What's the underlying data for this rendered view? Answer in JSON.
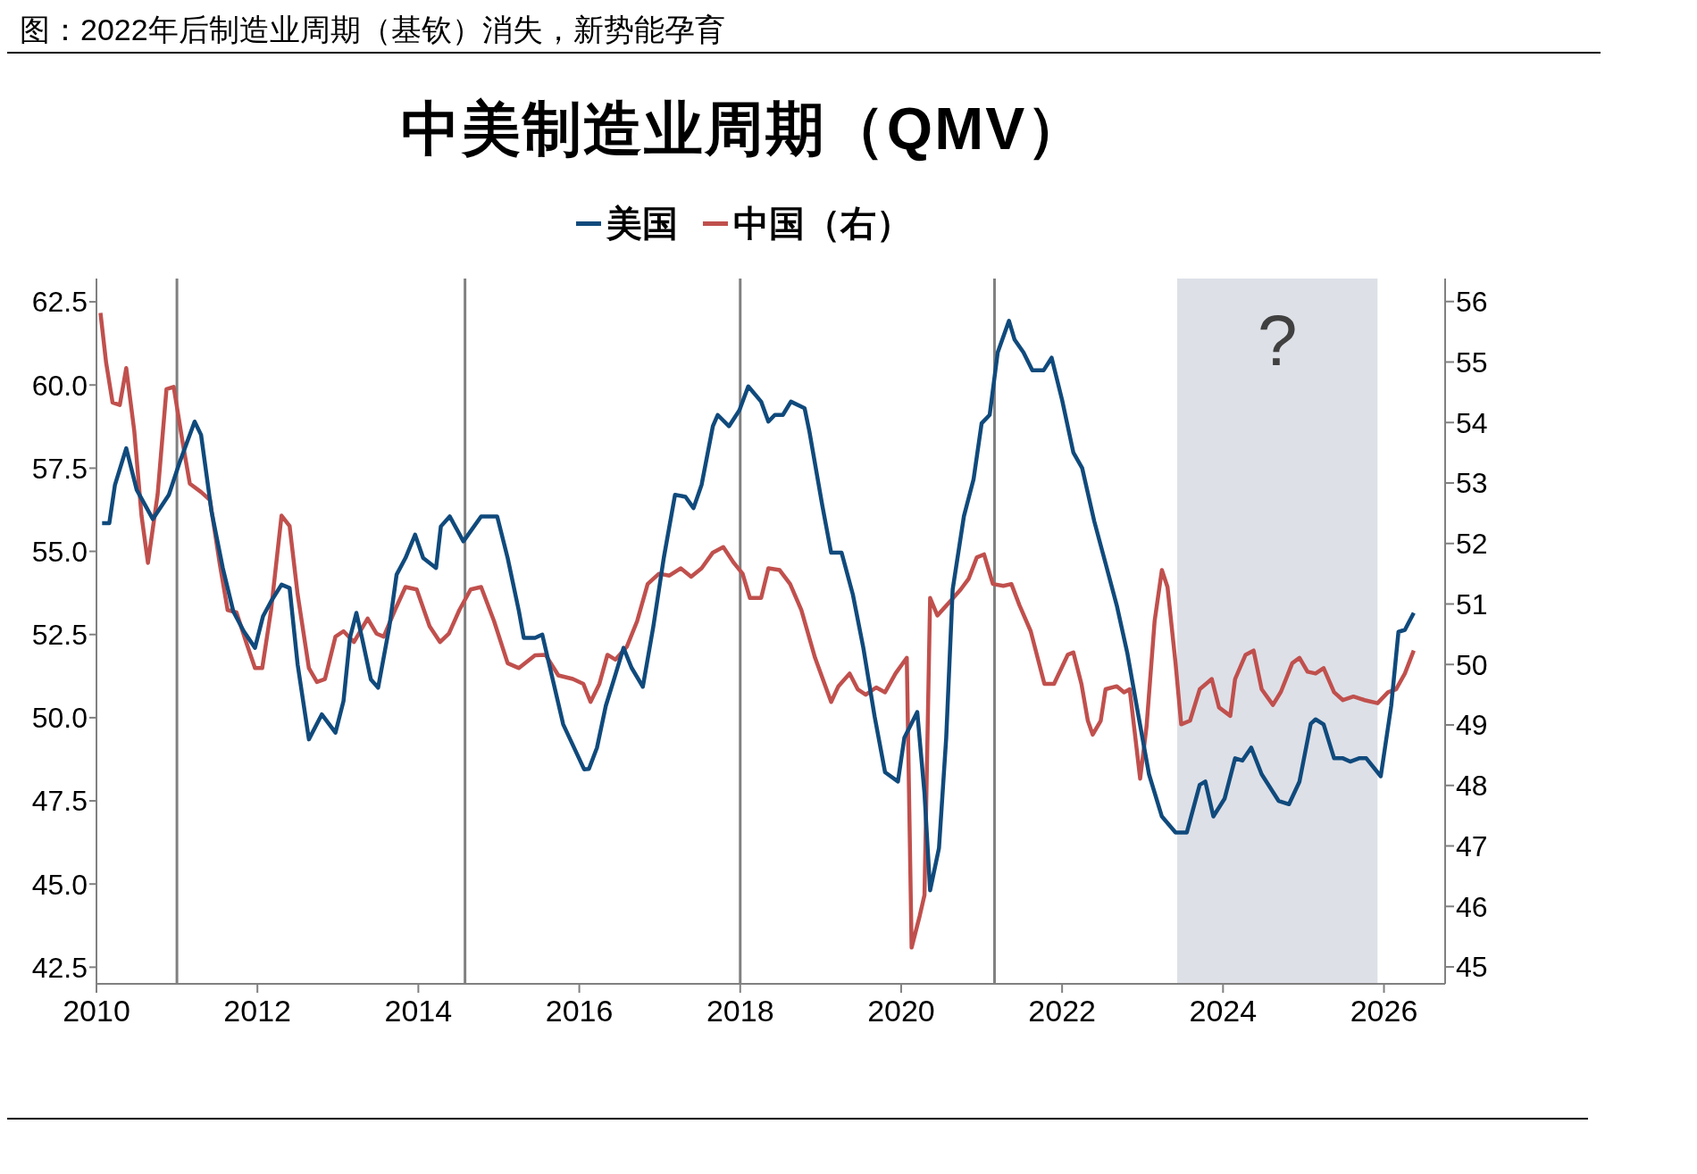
{
  "chart_data": {
    "type": "line",
    "title": "图：2022年后制造业周期（基钦）消失，新势能孕育",
    "subtitle": "中美制造业周期（QMV）",
    "xlim": [
      2010,
      2026.76
    ],
    "xticks": [
      2010,
      2012,
      2014,
      2016,
      2018,
      2020,
      2022,
      2024,
      2026
    ],
    "ylim": [
      42,
      63.2
    ],
    "yticks": [
      {
        "value": 42.5,
        "label": "42.5"
      },
      {
        "value": 45,
        "label": "45.0"
      },
      47.5,
      {
        "value": 50,
        "label": "50.0"
      },
      52.5,
      {
        "value": 55,
        "label": "55.0"
      },
      57.5,
      {
        "value": 60,
        "label": "60.0"
      },
      62.5
    ],
    "y2lim": [
      44.72,
      56.38
    ],
    "y2ticks": [
      45,
      46,
      47,
      48,
      49,
      50,
      51,
      52,
      53,
      54,
      55,
      56
    ],
    "grid": false,
    "legend": "top",
    "ref_lines": [
      {
        "axis": "x",
        "value": 2011.0,
        "color": "#808080"
      },
      {
        "axis": "x",
        "value": 2014.58,
        "color": "#808080"
      },
      {
        "axis": "x",
        "value": 2018.0,
        "color": "#808080"
      },
      {
        "axis": "x",
        "value": 2021.16,
        "color": "#808080"
      }
    ],
    "bands": [
      {
        "axis": "x",
        "from": 2023.43,
        "to": 2025.92,
        "label": "?",
        "color": "#dde0e7"
      }
    ],
    "series": [
      {
        "name": "美国",
        "color": "#104a7c",
        "x": [
          2010.07,
          2010.16,
          2010.23,
          2010.37,
          2010.5,
          2010.7,
          2010.9,
          2011.03,
          2011.22,
          2011.3,
          2011.43,
          2011.57,
          2011.7,
          2011.83,
          2011.97,
          2012.07,
          2012.17,
          2012.3,
          2012.4,
          2012.5,
          2012.64,
          2012.8,
          2012.97,
          2013.07,
          2013.15,
          2013.23,
          2013.3,
          2013.41,
          2013.5,
          2013.64,
          2013.73,
          2013.84,
          2013.96,
          2014.06,
          2014.22,
          2014.28,
          2014.39,
          2014.56,
          2014.78,
          2014.98,
          2015.11,
          2015.25,
          2015.31,
          2015.45,
          2015.54,
          2015.8,
          2016.06,
          2016.12,
          2016.22,
          2016.33,
          2016.45,
          2016.55,
          2016.65,
          2016.79,
          2016.92,
          2017.05,
          2017.19,
          2017.32,
          2017.42,
          2017.52,
          2017.66,
          2017.72,
          2017.86,
          2017.99,
          2018.1,
          2018.26,
          2018.35,
          2018.43,
          2018.53,
          2018.63,
          2018.8,
          2018.86,
          2019.02,
          2019.13,
          2019.26,
          2019.4,
          2019.53,
          2019.67,
          2019.8,
          2019.96,
          2020.04,
          2020.2,
          2020.29,
          2020.36,
          2020.47,
          2020.56,
          2020.64,
          2020.78,
          2020.9,
          2021.0,
          2021.1,
          2021.2,
          2021.34,
          2021.41,
          2021.52,
          2021.63,
          2021.77,
          2021.87,
          2022.0,
          2022.14,
          2022.25,
          2022.4,
          2022.54,
          2022.68,
          2022.81,
          2022.95,
          2023.08,
          2023.24,
          2023.41,
          2023.55,
          2023.71,
          2023.78,
          2023.88,
          2024.02,
          2024.15,
          2024.24,
          2024.35,
          2024.48,
          2024.69,
          2024.82,
          2024.95,
          2025.09,
          2025.15,
          2025.25,
          2025.38,
          2025.49,
          2025.58,
          2025.69,
          2025.78,
          2025.96,
          2026.09,
          2026.18,
          2026.26,
          2026.37
        ],
        "values": [
          55.85,
          55.85,
          57.0,
          58.1,
          56.85,
          55.97,
          56.7,
          57.65,
          58.9,
          58.5,
          56.2,
          54.5,
          53.2,
          52.6,
          52.1,
          53.05,
          53.5,
          54.0,
          53.9,
          51.6,
          49.35,
          50.1,
          49.55,
          50.5,
          52.4,
          53.15,
          52.4,
          51.15,
          50.9,
          52.74,
          54.3,
          54.8,
          55.5,
          54.8,
          54.5,
          55.75,
          56.05,
          55.3,
          56.05,
          56.05,
          54.8,
          53.2,
          52.4,
          52.4,
          52.5,
          49.8,
          48.45,
          48.46,
          49.1,
          50.36,
          51.3,
          52.1,
          51.5,
          50.93,
          52.74,
          54.8,
          56.7,
          56.64,
          56.3,
          57.0,
          58.76,
          59.1,
          58.76,
          59.24,
          59.96,
          59.5,
          58.9,
          59.1,
          59.1,
          59.5,
          59.3,
          58.6,
          56.38,
          54.96,
          54.96,
          53.7,
          52.1,
          50.04,
          48.36,
          48.08,
          49.4,
          50.17,
          47.73,
          44.81,
          46.08,
          49.4,
          53.85,
          56.06,
          57.17,
          58.85,
          59.1,
          60.98,
          61.93,
          61.36,
          60.98,
          60.44,
          60.44,
          60.82,
          59.55,
          57.97,
          57.5,
          55.9,
          54.64,
          53.37,
          51.95,
          50.04,
          48.3,
          47.03,
          46.55,
          46.55,
          47.98,
          48.08,
          47.03,
          47.57,
          48.78,
          48.71,
          49.1,
          48.3,
          47.5,
          47.4,
          48.08,
          49.82,
          49.95,
          49.8,
          48.78,
          48.78,
          48.68,
          48.78,
          48.78,
          48.24,
          50.36,
          52.58,
          52.64,
          53.15
        ]
      },
      {
        "name": "中国（右）",
        "color": "#c0504d",
        "axis": "y2",
        "x": [
          2010.05,
          2010.12,
          2010.2,
          2010.29,
          2010.37,
          2010.47,
          2010.56,
          2010.64,
          2010.76,
          2010.87,
          2010.96,
          2011.07,
          2011.16,
          2011.3,
          2011.41,
          2011.53,
          2011.63,
          2011.74,
          2011.86,
          2011.97,
          2012.06,
          2012.17,
          2012.3,
          2012.4,
          2012.5,
          2012.64,
          2012.74,
          2012.84,
          2012.97,
          2013.07,
          2013.2,
          2013.37,
          2013.48,
          2013.57,
          2013.71,
          2013.84,
          2013.98,
          2014.14,
          2014.27,
          2014.38,
          2014.51,
          2014.65,
          2014.78,
          2014.94,
          2015.11,
          2015.25,
          2015.45,
          2015.58,
          2015.74,
          2015.92,
          2016.05,
          2016.14,
          2016.25,
          2016.35,
          2016.45,
          2016.59,
          2016.72,
          2016.85,
          2016.99,
          2017.12,
          2017.26,
          2017.39,
          2017.52,
          2017.66,
          2017.79,
          2017.92,
          2018.03,
          2018.12,
          2018.26,
          2018.35,
          2018.49,
          2018.62,
          2018.76,
          2018.93,
          2019.13,
          2019.22,
          2019.36,
          2019.46,
          2019.56,
          2019.69,
          2019.8,
          2019.93,
          2020.07,
          2020.13,
          2020.23,
          2020.29,
          2020.36,
          2020.45,
          2020.6,
          2020.74,
          2020.84,
          2020.94,
          2021.03,
          2021.14,
          2021.27,
          2021.37,
          2021.47,
          2021.61,
          2021.78,
          2021.9,
          2022.07,
          2022.14,
          2022.24,
          2022.32,
          2022.38,
          2022.48,
          2022.54,
          2022.68,
          2022.77,
          2022.84,
          2022.97,
          2023.05,
          2023.15,
          2023.24,
          2023.31,
          2023.41,
          2023.48,
          2023.59,
          2023.71,
          2023.86,
          2023.95,
          2024.09,
          2024.15,
          2024.28,
          2024.38,
          2024.48,
          2024.62,
          2024.72,
          2024.86,
          2024.95,
          2025.05,
          2025.15,
          2025.25,
          2025.38,
          2025.49,
          2025.62,
          2025.76,
          2025.92,
          2026.05,
          2026.15,
          2026.26,
          2026.37
        ],
        "values": [
          55.81,
          54.99,
          54.33,
          54.29,
          54.9,
          53.86,
          52.46,
          51.68,
          52.81,
          54.55,
          54.59,
          53.68,
          52.99,
          52.85,
          52.72,
          51.68,
          50.9,
          50.86,
          50.37,
          49.94,
          49.94,
          50.9,
          52.46,
          52.29,
          51.16,
          49.94,
          49.71,
          49.76,
          50.46,
          50.55,
          50.37,
          50.76,
          50.51,
          50.46,
          50.9,
          51.28,
          51.24,
          50.63,
          50.37,
          50.51,
          50.9,
          51.24,
          51.28,
          50.72,
          50.02,
          49.94,
          50.15,
          50.16,
          49.82,
          49.76,
          49.68,
          49.38,
          49.68,
          50.16,
          50.08,
          50.29,
          50.72,
          51.33,
          51.5,
          51.47,
          51.59,
          51.45,
          51.59,
          51.85,
          51.94,
          51.68,
          51.5,
          51.1,
          51.1,
          51.59,
          51.56,
          51.33,
          50.9,
          50.11,
          49.38,
          49.64,
          49.85,
          49.59,
          49.5,
          49.62,
          49.54,
          49.85,
          50.11,
          45.32,
          45.84,
          46.19,
          51.1,
          50.81,
          51.03,
          51.24,
          51.42,
          51.77,
          51.82,
          51.33,
          51.3,
          51.33,
          50.98,
          50.55,
          49.68,
          49.68,
          50.16,
          50.2,
          49.68,
          49.07,
          48.84,
          49.07,
          49.59,
          49.64,
          49.54,
          49.59,
          48.11,
          48.98,
          50.72,
          51.56,
          51.28,
          50.02,
          49.01,
          49.07,
          49.59,
          49.76,
          49.29,
          49.15,
          49.76,
          50.16,
          50.23,
          49.59,
          49.33,
          49.55,
          50.02,
          50.11,
          49.88,
          49.85,
          49.94,
          49.54,
          49.41,
          49.47,
          49.41,
          49.36,
          49.54,
          49.59,
          49.85,
          50.23
        ]
      }
    ]
  }
}
